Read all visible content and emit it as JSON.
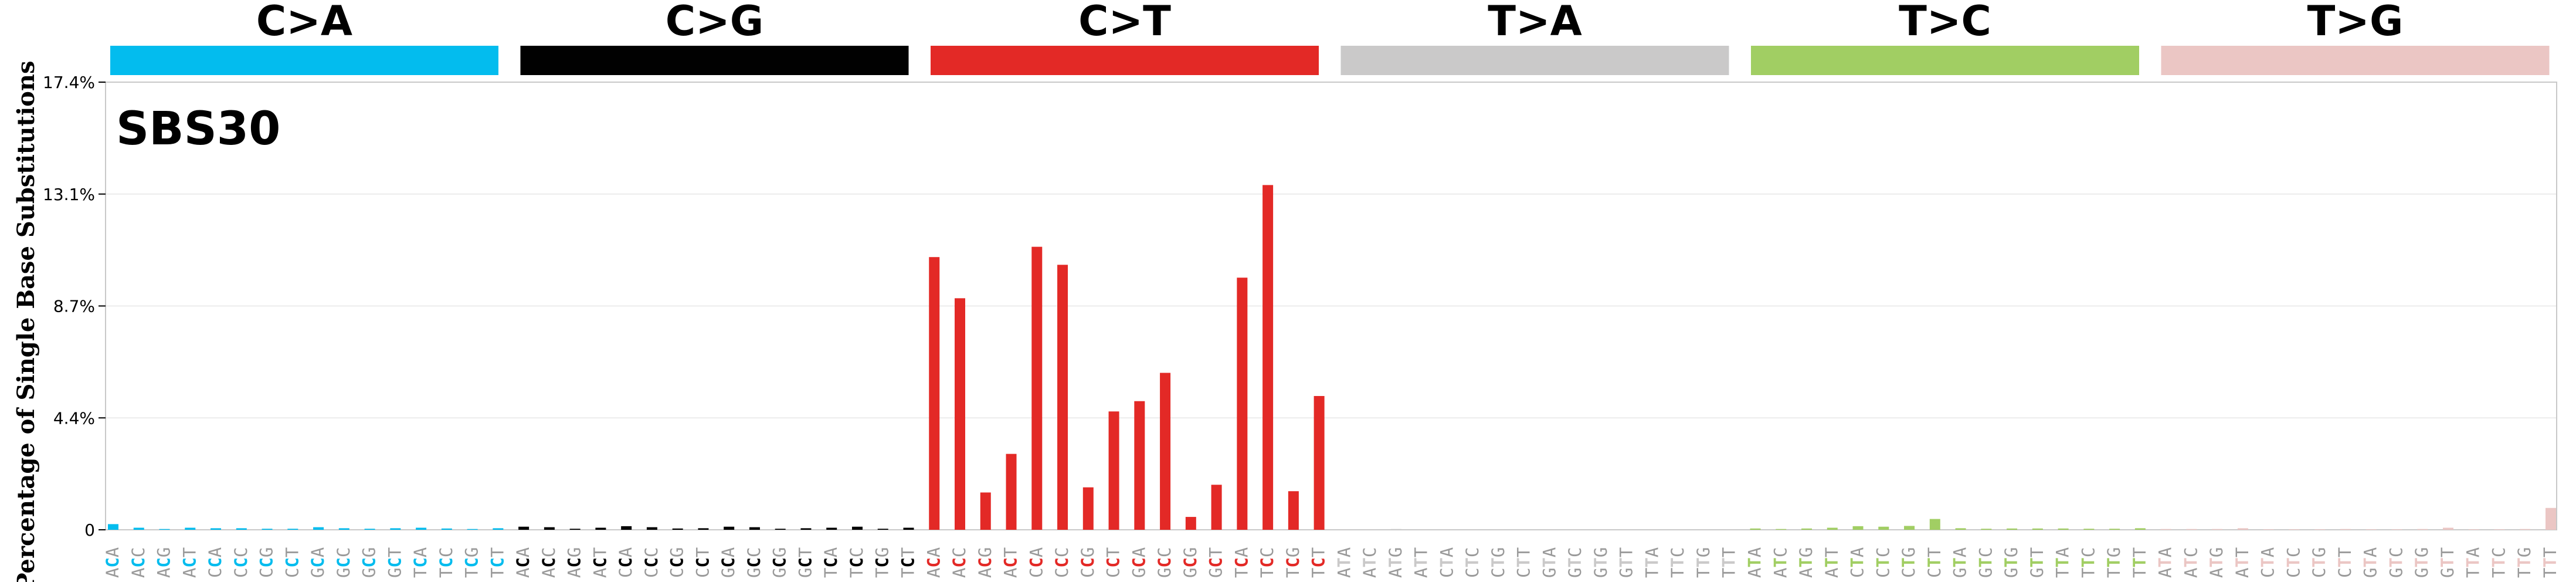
{
  "chart_data": {
    "type": "bar",
    "title": "SBS30",
    "ylabel": "Percentage of Single Base Substitutions",
    "ylim": [
      0,
      17.4
    ],
    "yticks": [
      "0",
      "4.4%",
      "8.7%",
      "13.1%",
      "17.4%"
    ],
    "ytick_values": [
      0,
      4.35,
      8.7,
      13.05,
      17.4
    ],
    "grid": true,
    "groups": [
      {
        "name": "C>A",
        "color": "#03bcee",
        "ref": "C"
      },
      {
        "name": "C>G",
        "color": "#010101",
        "ref": "C"
      },
      {
        "name": "C>T",
        "color": "#e32926",
        "ref": "C"
      },
      {
        "name": "T>A",
        "color": "#cac9c9",
        "ref": "T"
      },
      {
        "name": "T>C",
        "color": "#a1ce63",
        "ref": "T"
      },
      {
        "name": "T>G",
        "color": "#ebc6c4",
        "ref": "T"
      }
    ],
    "contexts": [
      "A_A",
      "A_C",
      "A_G",
      "A_T",
      "C_A",
      "C_C",
      "C_G",
      "C_T",
      "G_A",
      "G_C",
      "G_G",
      "G_T",
      "T_A",
      "T_C",
      "T_G",
      "T_T"
    ],
    "values": [
      [
        0.22,
        0.08,
        0.03,
        0.08,
        0.06,
        0.06,
        0.04,
        0.04,
        0.1,
        0.06,
        0.04,
        0.06,
        0.08,
        0.05,
        0.03,
        0.06
      ],
      [
        0.12,
        0.1,
        0.04,
        0.08,
        0.14,
        0.1,
        0.05,
        0.06,
        0.12,
        0.1,
        0.04,
        0.06,
        0.08,
        0.12,
        0.04,
        0.08
      ],
      [
        10.6,
        9.0,
        1.45,
        2.95,
        11.0,
        10.3,
        1.65,
        4.6,
        5.0,
        6.1,
        0.5,
        1.75,
        9.8,
        13.4,
        1.5,
        5.2
      ],
      [
        0.02,
        0.02,
        0.03,
        0.02,
        0.02,
        0.02,
        0.02,
        0.02,
        0.02,
        0.02,
        0.02,
        0.02,
        0.02,
        0.02,
        0.02,
        0.02
      ],
      [
        0.05,
        0.03,
        0.05,
        0.08,
        0.14,
        0.12,
        0.15,
        0.42,
        0.06,
        0.04,
        0.05,
        0.05,
        0.05,
        0.04,
        0.04,
        0.06
      ],
      [
        0.03,
        0.03,
        0.03,
        0.06,
        0.02,
        0.02,
        0.02,
        0.03,
        0.02,
        0.02,
        0.03,
        0.08,
        0.02,
        0.02,
        0.03,
        0.85
      ]
    ],
    "xlabels": [
      "ACA",
      "ACC",
      "ACG",
      "ACT",
      "CCA",
      "CCC",
      "CCG",
      "CCT",
      "GCA",
      "GCC",
      "GCG",
      "GCT",
      "TCA",
      "TCC",
      "TCG",
      "TCT",
      "ACA",
      "ACC",
      "ACG",
      "ACT",
      "CCA",
      "CCC",
      "CCG",
      "CCT",
      "GCA",
      "GCC",
      "GCG",
      "GCT",
      "TCA",
      "TCC",
      "TCG",
      "TCT",
      "ACA",
      "ACC",
      "ACG",
      "ACT",
      "CCA",
      "CCC",
      "CCG",
      "CCT",
      "GCA",
      "GCC",
      "GCG",
      "GCT",
      "TCA",
      "TCC",
      "TCG",
      "TCT",
      "ATA",
      "ATC",
      "ATG",
      "ATT",
      "CTA",
      "CTC",
      "CTG",
      "CTT",
      "GTA",
      "GTC",
      "GTG",
      "GTT",
      "TTA",
      "TTC",
      "TTG",
      "TTT",
      "ATA",
      "ATC",
      "ATG",
      "ATT",
      "CTA",
      "CTC",
      "CTG",
      "CTT",
      "GTA",
      "GTC",
      "GTG",
      "GTT",
      "TTA",
      "TTC",
      "TTG",
      "TTT",
      "ATA",
      "ATC",
      "ATG",
      "ATT",
      "CTA",
      "CTC",
      "CTG",
      "CTT",
      "GTA",
      "GTC",
      "GTG",
      "GTT",
      "TTA",
      "TTC",
      "TTG",
      "TTT"
    ]
  }
}
